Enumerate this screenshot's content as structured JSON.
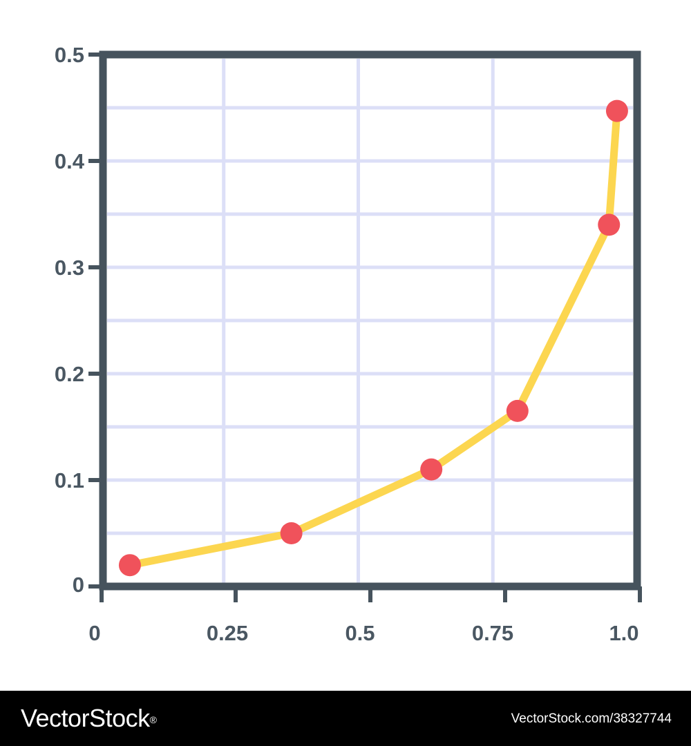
{
  "colors": {
    "frame": "#46535d",
    "grid": "#dcdff7",
    "line": "#fcd650",
    "point": "#f0525b",
    "tick_text": "#4a5762",
    "footer_bg": "#000000",
    "footer_text": "#ffffff"
  },
  "chart_data": {
    "type": "line",
    "title": "",
    "xlabel": "",
    "ylabel": "",
    "xlim": [
      0,
      1.0
    ],
    "ylim": [
      0,
      0.5
    ],
    "grid": true,
    "legend": "none",
    "x_tick_labels": [
      "0",
      "0.25",
      "0.5",
      "0.75",
      "1.0"
    ],
    "y_tick_labels": [
      "0",
      "0.1",
      "0.2",
      "0.3",
      "0.4",
      "0.5"
    ],
    "series": [
      {
        "x": [
          0.05,
          0.35,
          0.61,
          0.77,
          0.94,
          0.955
        ],
        "y": [
          0.02,
          0.05,
          0.11,
          0.165,
          0.34,
          0.447
        ]
      }
    ]
  },
  "footer": {
    "brand": "VectorStock",
    "brand_mark": "®",
    "image_id": "VectorStock.com/38327744"
  }
}
